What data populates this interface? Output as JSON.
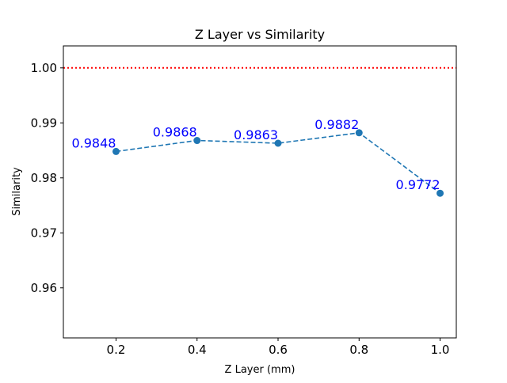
{
  "chart_data": {
    "type": "line",
    "title": "Z Layer vs Similarity",
    "xlabel": "Z Layer (mm)",
    "ylabel": "Similarity",
    "xlim": [
      0.07,
      1.04
    ],
    "ylim": [
      0.9509,
      1.004
    ],
    "x_ticks": [
      0.2,
      0.4,
      0.6,
      0.8,
      1.0
    ],
    "x_tick_labels": [
      "0.2",
      "0.4",
      "0.6",
      "0.8",
      "1.0"
    ],
    "y_ticks": [
      0.96,
      0.97,
      0.98,
      0.99,
      1.0
    ],
    "y_tick_labels": [
      "0.96",
      "0.97",
      "0.98",
      "0.99",
      "1.00"
    ],
    "grid": false,
    "series": [
      {
        "x": [
          0.2,
          0.4,
          0.6,
          0.8,
          1.0
        ],
        "y": [
          0.9848,
          0.9868,
          0.9863,
          0.9882,
          0.9772
        ],
        "labels": [
          "0.9848",
          "0.9868",
          "0.9863",
          "0.9882",
          "0.9772"
        ],
        "color": "#1f77b4",
        "line_style": "dashed",
        "marker": "circle",
        "label_color": "#0000ff"
      }
    ],
    "reference_lines": [
      {
        "axis": "y",
        "value": 1.0,
        "color": "#ff0000",
        "style": "dotted"
      }
    ]
  }
}
